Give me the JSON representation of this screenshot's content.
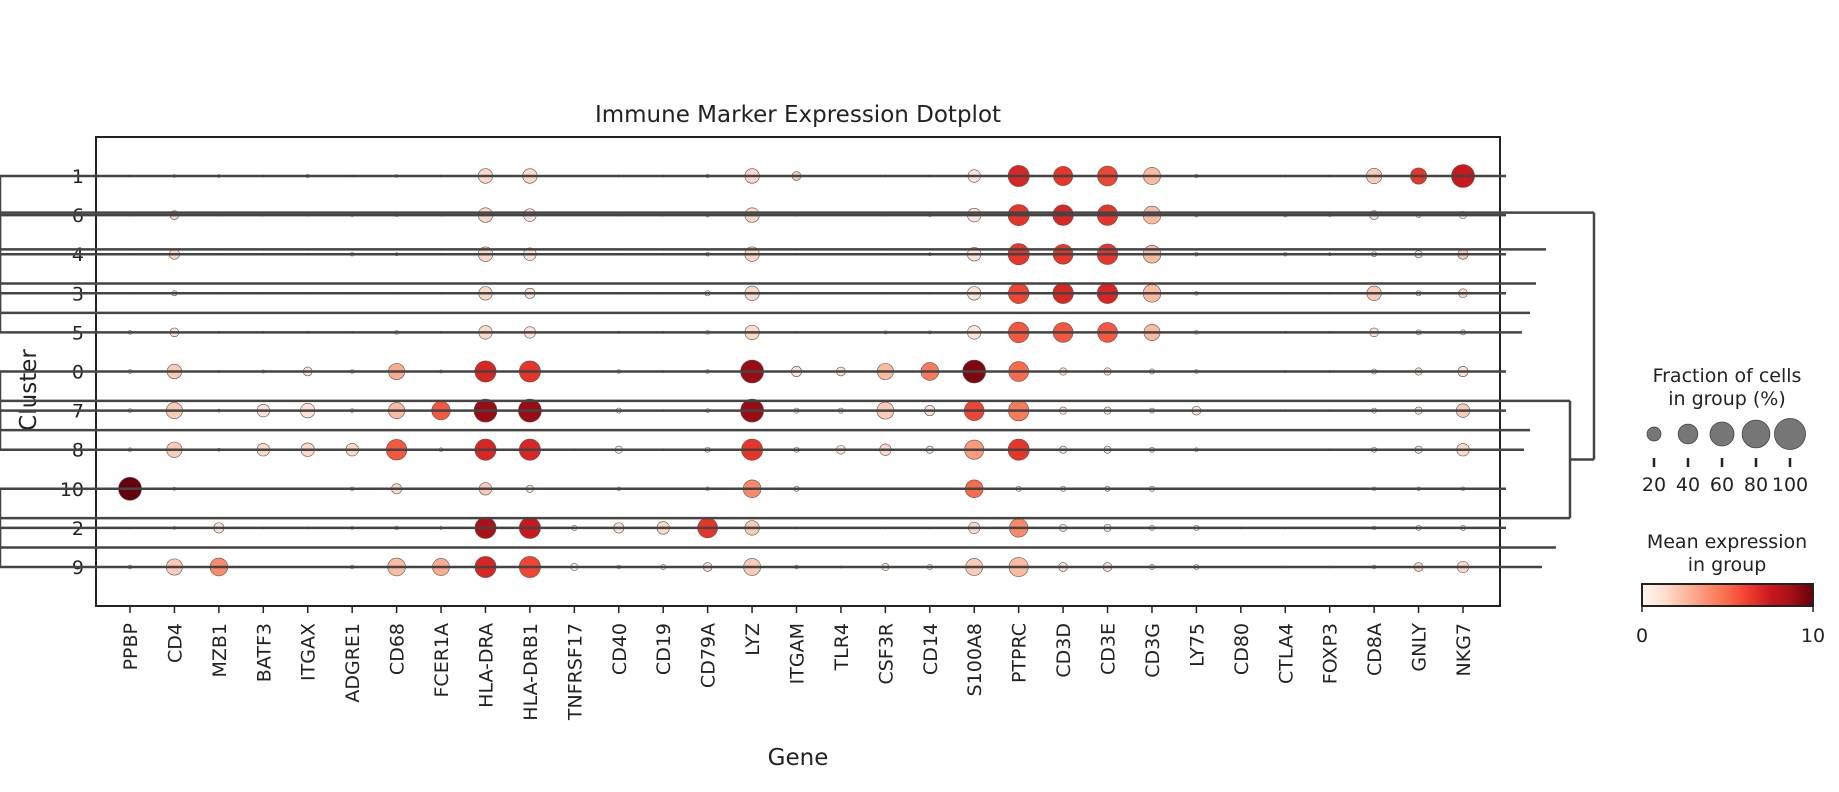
{
  "chart_data": {
    "type": "scatter",
    "subtype": "dotplot",
    "title": "Immune Marker Expression Dotplot",
    "xlabel": "Gene",
    "ylabel": "Cluster",
    "genes": [
      "PPBP",
      "CD4",
      "MZB1",
      "BATF3",
      "ITGAX",
      "ADGRE1",
      "CD68",
      "FCER1A",
      "HLA-DRA",
      "HLA-DRB1",
      "TNFRSF17",
      "CD40",
      "CD19",
      "CD79A",
      "LYZ",
      "ITGAM",
      "TLR4",
      "CSF3R",
      "CD14",
      "S100A8",
      "PTPRC",
      "CD3D",
      "CD3E",
      "CD3G",
      "LY75",
      "CD80",
      "CTLA4",
      "FOXP3",
      "CD8A",
      "GNLY",
      "NKG7"
    ],
    "clusters": [
      "1",
      "6",
      "4",
      "3",
      "5",
      "0",
      "7",
      "8",
      "10",
      "2",
      "9"
    ],
    "fraction_pct": [
      [
        1,
        2,
        2,
        1,
        3,
        1,
        2,
        1,
        40,
        40,
        0,
        1,
        1,
        3,
        40,
        15,
        0,
        1,
        1,
        30,
        85,
        70,
        75,
        55,
        3,
        0,
        1,
        1,
        45,
        50,
        100
      ],
      [
        1,
        15,
        1,
        1,
        1,
        2,
        2,
        1,
        40,
        30,
        0,
        1,
        1,
        3,
        40,
        1,
        0,
        1,
        2,
        35,
        85,
        80,
        80,
        60,
        3,
        0,
        3,
        2,
        15,
        5,
        10
      ],
      [
        1,
        20,
        1,
        1,
        1,
        3,
        2,
        1,
        40,
        30,
        0,
        1,
        1,
        3,
        40,
        1,
        0,
        1,
        2,
        35,
        85,
        75,
        80,
        60,
        3,
        0,
        3,
        2,
        5,
        10,
        20
      ],
      [
        1,
        5,
        1,
        1,
        1,
        1,
        1,
        1,
        35,
        20,
        0,
        1,
        1,
        5,
        40,
        1,
        0,
        1,
        1,
        35,
        80,
        80,
        80,
        60,
        3,
        0,
        1,
        1,
        40,
        5,
        15
      ],
      [
        3,
        15,
        1,
        1,
        1,
        1,
        3,
        1,
        35,
        25,
        0,
        1,
        1,
        3,
        40,
        1,
        0,
        2,
        2,
        35,
        80,
        75,
        75,
        50,
        3,
        0,
        1,
        1,
        15,
        5,
        5
      ],
      [
        3,
        40,
        1,
        2,
        15,
        3,
        50,
        2,
        85,
        85,
        0,
        3,
        1,
        3,
        100,
        20,
        15,
        50,
        60,
        100,
        75,
        10,
        10,
        5,
        3,
        0,
        1,
        1,
        5,
        10,
        20
      ],
      [
        3,
        50,
        2,
        30,
        40,
        3,
        50,
        65,
        100,
        100,
        0,
        5,
        1,
        3,
        100,
        5,
        5,
        55,
        20,
        75,
        80,
        10,
        10,
        5,
        15,
        0,
        1,
        1,
        5,
        10,
        35
      ],
      [
        3,
        45,
        2,
        30,
        35,
        30,
        80,
        3,
        85,
        85,
        1,
        10,
        1,
        5,
        85,
        5,
        15,
        25,
        10,
        70,
        85,
        10,
        10,
        5,
        3,
        0,
        1,
        1,
        5,
        10,
        30
      ],
      [
        100,
        2,
        0,
        0,
        0,
        3,
        20,
        0,
        30,
        10,
        0,
        3,
        0,
        3,
        60,
        5,
        0,
        1,
        1,
        60,
        5,
        5,
        5,
        5,
        0,
        0,
        0,
        0,
        3,
        3,
        3
      ],
      [
        1,
        2,
        20,
        1,
        1,
        2,
        3,
        2,
        85,
        85,
        5,
        20,
        30,
        75,
        40,
        1,
        0,
        1,
        1,
        25,
        65,
        10,
        10,
        5,
        5,
        1,
        1,
        0,
        3,
        5,
        5
      ],
      [
        3,
        50,
        60,
        0,
        0,
        3,
        60,
        55,
        85,
        85,
        10,
        3,
        5,
        15,
        55,
        3,
        1,
        10,
        5,
        55,
        70,
        15,
        15,
        5,
        5,
        0,
        1,
        1,
        3,
        15,
        25
      ]
    ],
    "mean_expression": [
      [
        0,
        1,
        0,
        0,
        0,
        0,
        0,
        0,
        1.5,
        1.5,
        0,
        0,
        0,
        0,
        1.5,
        2,
        0,
        0,
        0,
        1,
        7,
        6.5,
        6,
        2.5,
        0,
        0,
        0,
        0,
        2,
        6.5,
        7.5
      ],
      [
        0,
        1.5,
        0,
        0,
        0,
        0,
        0,
        0,
        1.5,
        1,
        0,
        0,
        0,
        0,
        1.5,
        0,
        0,
        0,
        0,
        1,
        6.5,
        7,
        6.5,
        2.5,
        0,
        0,
        0,
        0,
        1,
        1,
        1
      ],
      [
        0,
        1.5,
        0,
        0,
        0,
        0,
        0,
        0,
        1.5,
        1,
        0,
        0,
        0,
        0,
        1.5,
        0,
        0,
        0,
        0,
        1,
        6.5,
        6.5,
        6.5,
        2.5,
        0,
        0,
        0,
        0,
        1,
        1,
        2
      ],
      [
        0,
        1,
        0,
        0,
        0,
        0,
        0,
        0,
        1.5,
        1,
        0,
        0,
        0,
        0,
        1.5,
        0,
        0,
        0,
        0,
        1,
        6,
        7,
        7,
        2.5,
        0,
        0,
        0,
        0,
        2,
        1,
        1.5
      ],
      [
        0,
        1,
        0,
        0,
        0,
        0,
        0,
        0,
        1.5,
        1,
        0,
        0,
        0,
        0,
        1.5,
        0,
        0,
        0,
        0,
        1,
        5.5,
        5.5,
        5.5,
        2.5,
        0,
        0,
        0,
        0,
        1,
        1,
        1
      ],
      [
        0,
        2,
        0,
        0,
        1,
        0,
        3,
        0,
        7,
        6.5,
        0,
        0,
        0,
        0,
        9,
        1,
        1,
        2.5,
        4.5,
        9.5,
        5,
        1,
        1,
        0.5,
        0,
        0,
        0,
        0,
        1,
        1,
        1
      ],
      [
        0,
        2,
        0,
        1,
        1,
        0,
        2.5,
        5.5,
        9,
        9,
        0,
        0,
        0,
        0,
        9,
        0,
        0,
        2,
        1,
        6,
        4.5,
        1,
        1,
        0.5,
        1,
        0,
        0,
        0,
        0,
        1,
        2
      ],
      [
        0,
        2,
        0,
        1.5,
        1.5,
        1.5,
        5.5,
        0,
        7,
        7,
        0,
        0,
        0,
        0,
        6.5,
        0,
        1,
        1.5,
        1,
        3.5,
        6.5,
        1,
        1,
        0.5,
        0,
        0,
        0,
        0,
        0,
        1,
        1.5
      ],
      [
        10,
        0,
        0,
        0,
        0,
        0,
        1.5,
        0,
        2,
        1,
        0,
        0,
        0,
        0,
        4,
        0,
        0,
        0,
        0,
        5,
        0,
        0,
        0,
        0,
        0,
        0,
        0,
        0,
        0,
        0,
        0
      ],
      [
        0,
        0,
        1,
        0,
        0,
        0,
        0,
        0,
        8.5,
        7.5,
        0,
        1,
        1.5,
        6.5,
        2,
        0,
        0,
        0,
        0,
        1.5,
        4,
        1,
        1,
        0.5,
        0,
        0,
        0,
        0,
        0,
        0,
        0
      ],
      [
        0,
        2,
        4,
        0,
        0,
        0,
        2.5,
        3,
        7,
        6,
        0,
        0,
        0,
        1,
        2,
        0,
        0,
        1,
        0,
        2,
        2.5,
        1,
        1,
        0.5,
        0,
        0,
        0,
        0,
        0,
        1.5,
        1.5
      ]
    ],
    "color_scale": {
      "cmap": "Reds",
      "min": 0,
      "max": 10,
      "low": "#fff5f0",
      "high": "#67000d"
    },
    "legend": {
      "size_title_line1": "Fraction of cells",
      "size_title_line2": "in group (%)",
      "size_values": [
        20,
        40,
        60,
        80,
        100
      ],
      "size_labels": [
        "20",
        "40",
        "60",
        "80",
        "100"
      ],
      "color_title_line1": "Mean expression",
      "color_title_line2": "in group",
      "color_min_label": "0",
      "color_max_label": "10",
      "placement": "right"
    },
    "dendrogram": {
      "placement": "right",
      "leaf_order": [
        "1",
        "6",
        "4",
        "3",
        "5",
        "0",
        "7",
        "8",
        "10",
        "2",
        "9"
      ]
    },
    "grid": false
  }
}
